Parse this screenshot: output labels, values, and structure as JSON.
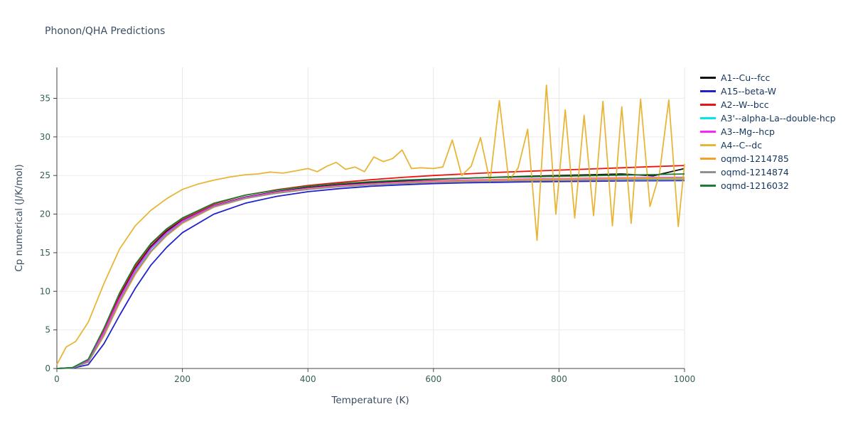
{
  "page": {
    "title": "Phonon/QHA Predictions"
  },
  "chart_data": {
    "type": "line",
    "title": "Phonon/QHA Predictions",
    "xlabel": "Temperature (K)",
    "ylabel": "Cp numerical (J/K/mol)",
    "xlim": [
      0,
      1000
    ],
    "ylim": [
      0,
      39
    ],
    "xticks": [
      0,
      200,
      400,
      600,
      800,
      1000
    ],
    "yticks": [
      0,
      5,
      10,
      15,
      20,
      25,
      30,
      35
    ],
    "grid": true,
    "legend_position": "right",
    "x_common": [
      0,
      25,
      50,
      75,
      100,
      125,
      150,
      175,
      200,
      250,
      300,
      350,
      400,
      450,
      500,
      550,
      600,
      650,
      700,
      750,
      800,
      850,
      900,
      950,
      1000
    ],
    "series": [
      {
        "name": "A1--Cu--fcc",
        "color": "#111111",
        "x": "common",
        "y": [
          0,
          0.1,
          1.0,
          4.8,
          9.3,
          13.0,
          15.8,
          17.8,
          19.2,
          21.1,
          22.2,
          22.9,
          23.45,
          23.8,
          24.1,
          24.3,
          24.5,
          24.65,
          24.78,
          24.9,
          25.0,
          25.1,
          25.2,
          24.95,
          25.9
        ]
      },
      {
        "name": "A15--beta-W",
        "color": "#2222cc",
        "x": "common",
        "y": [
          0,
          0.05,
          0.5,
          3.2,
          6.9,
          10.4,
          13.4,
          15.7,
          17.6,
          20.0,
          21.4,
          22.3,
          22.9,
          23.3,
          23.6,
          23.8,
          23.95,
          24.05,
          24.12,
          24.18,
          24.22,
          24.26,
          24.3,
          24.32,
          24.35
        ]
      },
      {
        "name": "A2--W--bcc",
        "color": "#ee1111",
        "x": "common",
        "y": [
          0,
          0.1,
          1.1,
          5.0,
          9.6,
          13.3,
          16.1,
          18.0,
          19.4,
          21.3,
          22.45,
          23.15,
          23.7,
          24.1,
          24.45,
          24.75,
          25.0,
          25.2,
          25.4,
          25.55,
          25.7,
          25.85,
          26.0,
          26.15,
          26.3
        ]
      },
      {
        "name": "A3'--alpha-La--double-hcp",
        "color": "#00e5ee",
        "x": "common",
        "y": [
          0,
          0.1,
          0.95,
          4.6,
          9.0,
          12.7,
          15.5,
          17.5,
          19.0,
          21.0,
          22.1,
          22.8,
          23.3,
          23.65,
          23.9,
          24.1,
          24.25,
          24.35,
          24.42,
          24.48,
          24.52,
          24.55,
          24.58,
          24.6,
          24.62
        ]
      },
      {
        "name": "A3--Mg--hcp",
        "color": "#ff22ff",
        "x": "common",
        "y": [
          0,
          0.1,
          1.0,
          4.7,
          9.1,
          12.8,
          15.6,
          17.6,
          19.1,
          21.05,
          22.15,
          22.85,
          23.35,
          23.7,
          23.95,
          24.15,
          24.3,
          24.4,
          24.48,
          24.54,
          24.6,
          24.65,
          24.7,
          24.73,
          24.76
        ]
      },
      {
        "name": "A4--C--dc",
        "color": "#e8b637",
        "x": [
          0,
          15,
          30,
          50,
          75,
          100,
          125,
          150,
          175,
          200,
          225,
          250,
          275,
          300,
          320,
          340,
          360,
          380,
          400,
          415,
          430,
          445,
          460,
          475,
          490,
          505,
          520,
          535,
          550,
          565,
          580,
          600,
          615,
          630,
          645,
          660,
          675,
          690,
          705,
          720,
          735,
          750,
          765,
          780,
          795,
          810,
          825,
          840,
          855,
          870,
          885,
          900,
          915,
          930,
          945,
          960,
          975,
          990,
          1000
        ],
        "y": [
          0.5,
          2.8,
          3.5,
          6.0,
          11.0,
          15.5,
          18.5,
          20.5,
          22.0,
          23.2,
          23.9,
          24.4,
          24.8,
          25.1,
          25.2,
          25.45,
          25.3,
          25.6,
          25.9,
          25.5,
          26.2,
          26.7,
          25.8,
          26.1,
          25.5,
          27.4,
          26.8,
          27.2,
          28.3,
          25.9,
          26.0,
          25.9,
          26.1,
          29.6,
          25.0,
          26.2,
          29.9,
          24.2,
          34.7,
          24.3,
          26.0,
          31.0,
          16.6,
          36.7,
          20.0,
          33.5,
          19.5,
          32.8,
          19.8,
          34.6,
          18.5,
          33.9,
          18.8,
          34.9,
          21.0,
          25.2,
          34.8,
          18.4,
          26.5
        ]
      },
      {
        "name": "oqmd-1214785",
        "color": "#f59e2a",
        "x": "common",
        "y": [
          0,
          0.08,
          0.8,
          4.2,
          8.5,
          12.2,
          15.1,
          17.2,
          18.8,
          20.9,
          22.0,
          22.75,
          23.25,
          23.6,
          23.85,
          24.05,
          24.2,
          24.3,
          24.4,
          24.47,
          24.53,
          24.58,
          24.62,
          24.66,
          24.7
        ]
      },
      {
        "name": "oqmd-1214874",
        "color": "#909090",
        "x": "common",
        "y": [
          0,
          0.08,
          0.85,
          4.4,
          8.7,
          12.4,
          15.2,
          17.3,
          18.9,
          20.95,
          22.05,
          22.7,
          23.2,
          23.55,
          23.8,
          23.98,
          24.1,
          24.2,
          24.27,
          24.33,
          24.37,
          24.4,
          24.42,
          24.44,
          24.46
        ]
      },
      {
        "name": "oqmd-1216032",
        "color": "#1e7d32",
        "x": "common",
        "y": [
          0,
          0.12,
          1.2,
          5.2,
          9.8,
          13.5,
          16.2,
          18.1,
          19.5,
          21.4,
          22.45,
          23.1,
          23.6,
          23.95,
          24.2,
          24.4,
          24.55,
          24.65,
          24.75,
          24.83,
          24.9,
          24.97,
          25.05,
          25.12,
          25.2
        ]
      }
    ]
  }
}
